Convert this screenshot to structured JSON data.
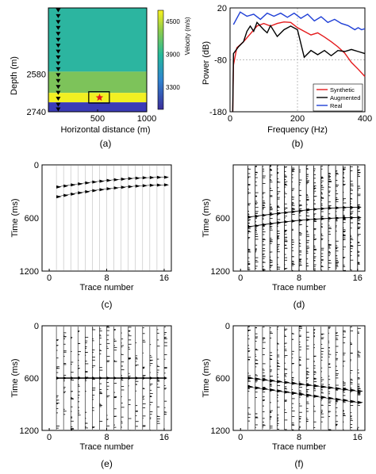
{
  "figure": {
    "panel_labels": [
      "(a)",
      "(b)",
      "(c)",
      "(d)",
      "(e)",
      "(f)"
    ]
  },
  "chart_data": [
    {
      "panel": "(a)",
      "type": "heatmap",
      "xlabel": "Horizontal distance (m)",
      "ylabel": "Depth (m)",
      "xticks": [
        "500",
        "1000"
      ],
      "yticks": [
        "2580",
        "2740"
      ],
      "xlim": [
        0,
        1000
      ],
      "ylim": [
        2300,
        2740
      ],
      "colorbar": {
        "label": "Velocity (m/s)",
        "ticks": [
          "4500",
          "3900",
          "3300"
        ],
        "range": [
          2900,
          4700
        ]
      },
      "layers": [
        {
          "top": 2300,
          "bottom": 2570,
          "velocity": 3900,
          "color": "#2cb5a0"
        },
        {
          "top": 2570,
          "bottom": 2660,
          "velocity": 4200,
          "color": "#7dc35a"
        },
        {
          "top": 2660,
          "bottom": 2700,
          "velocity": 4650,
          "color": "#f2f022"
        },
        {
          "top": 2700,
          "bottom": 2740,
          "velocity": 3000,
          "color": "#3b3bb7"
        }
      ],
      "receivers": {
        "x": 100,
        "depths": [
          2310,
          2335,
          2360,
          2385,
          2410,
          2435,
          2460,
          2485,
          2510,
          2535,
          2560,
          2585,
          2610,
          2635,
          2660,
          2685,
          2710,
          2730
        ]
      },
      "source": {
        "x": 520,
        "depth": 2680
      },
      "box": {
        "x0": 410,
        "x1": 620,
        "d0": 2655,
        "d1": 2703
      }
    },
    {
      "panel": "(b)",
      "type": "line",
      "xlabel": "Frequency (Hz)",
      "ylabel": "Power (dB)",
      "xlim": [
        0,
        400
      ],
      "ylim": [
        -180,
        20
      ],
      "xticks": [
        "0",
        "200",
        "400"
      ],
      "yticks": [
        "20",
        "-80",
        "-180"
      ],
      "grid": "dashed",
      "legend": "bottom-right",
      "series": [
        {
          "name": "Synthetic",
          "color": "#e41a1c",
          "x": [
            8,
            10,
            20,
            40,
            60,
            80,
            100,
            120,
            140,
            160,
            180,
            200,
            220,
            240,
            260,
            280,
            300,
            320,
            340,
            360,
            380,
            400
          ],
          "y": [
            -180,
            -90,
            -57,
            -45,
            -30,
            -15,
            -10,
            -15,
            -10,
            -7,
            -8,
            -18,
            -25,
            -32,
            -28,
            -36,
            -45,
            -55,
            -67,
            -85,
            -98,
            -112
          ]
        },
        {
          "name": "Augmented",
          "color": "#000000",
          "x": [
            8,
            10,
            25,
            40,
            50,
            60,
            70,
            80,
            100,
            110,
            120,
            140,
            160,
            180,
            200,
            220,
            240,
            260,
            280,
            300,
            320,
            340,
            360,
            380,
            400
          ],
          "y": [
            -180,
            -68,
            -55,
            -45,
            -25,
            -15,
            -25,
            -8,
            -22,
            -28,
            -14,
            -35,
            -22,
            -15,
            -22,
            -75,
            -62,
            -70,
            -62,
            -72,
            -62,
            -64,
            -60,
            -64,
            -68
          ]
        },
        {
          "name": "Real",
          "color": "#1f3fd6",
          "x": [
            10,
            30,
            50,
            70,
            90,
            110,
            130,
            150,
            170,
            190,
            210,
            230,
            250,
            270,
            290,
            310,
            330,
            350,
            370,
            380,
            390,
            400
          ],
          "y": [
            -12,
            12,
            4,
            8,
            -2,
            10,
            4,
            10,
            2,
            10,
            0,
            8,
            -5,
            3,
            -8,
            -2,
            -10,
            -14,
            -22,
            -18,
            -22,
            -20
          ]
        }
      ]
    },
    {
      "panel": "(c)",
      "type": "scatter",
      "xlabel": "Trace number",
      "ylabel": "Time (ms)",
      "xticks": [
        "0",
        "8",
        "16"
      ],
      "yticks": [
        "0",
        "600",
        "1200"
      ],
      "xlim": [
        -1,
        17
      ],
      "ylim": [
        1200,
        0
      ],
      "traces": [
        1,
        2,
        3,
        4,
        5,
        6,
        7,
        8,
        9,
        10,
        11,
        12,
        13,
        14,
        15,
        16
      ],
      "events": [
        {
          "name": "",
          "t": [
            250,
            238,
            226,
            215,
            204,
            194,
            185,
            176,
            168,
            161,
            155,
            150,
            146,
            143,
            141,
            140
          ]
        },
        {
          "name": "",
          "t": [
            360,
            345,
            330,
            316,
            303,
            291,
            280,
            270,
            261,
            253,
            246,
            240,
            235,
            231,
            228,
            226
          ]
        }
      ]
    },
    {
      "panel": "(d)",
      "type": "scatter",
      "xlabel": "Trace number",
      "ylabel": "Time (ms)",
      "xticks": [
        "0",
        "8",
        "16"
      ],
      "yticks": [
        "600",
        "1200"
      ],
      "xlim": [
        -1,
        17
      ],
      "ylim": [
        1200,
        0
      ],
      "traces": [
        1,
        2,
        3,
        4,
        5,
        6,
        7,
        8,
        9,
        10,
        11,
        12,
        13,
        14,
        15,
        16
      ],
      "events": [
        {
          "name": "",
          "t": [
            590,
            580,
            570,
            560,
            550,
            540,
            530,
            520,
            510,
            502,
            495,
            490,
            486,
            482,
            480,
            478
          ]
        },
        {
          "name": "",
          "t": [
            700,
            688,
            676,
            665,
            654,
            644,
            635,
            627,
            620,
            614,
            609,
            605,
            601,
            598,
            596,
            594
          ]
        }
      ]
    },
    {
      "panel": "(e)",
      "type": "scatter",
      "xlabel": "Trace number",
      "ylabel": "Time (ms)",
      "xticks": [
        "0",
        "8",
        "16"
      ],
      "yticks": [
        "0",
        "600",
        "1200"
      ],
      "xlim": [
        -1,
        17
      ],
      "ylim": [
        1200,
        0
      ],
      "traces": [
        1,
        2,
        3,
        4,
        5,
        6,
        7,
        8,
        9,
        10,
        11,
        12,
        13,
        14,
        15,
        16
      ],
      "events": [
        {
          "name": "",
          "t": [
            600,
            600,
            600,
            600,
            600,
            600,
            600,
            600,
            600,
            600,
            600,
            600,
            600,
            600,
            600,
            600
          ]
        }
      ]
    },
    {
      "panel": "(f)",
      "type": "scatter",
      "xlabel": "Trace number",
      "ylabel": "Time (ms)",
      "xticks": [
        "0",
        "8",
        "16"
      ],
      "yticks": [
        "0",
        "600",
        "1200"
      ],
      "xlim": [
        -1,
        17
      ],
      "ylim": [
        1200,
        0
      ],
      "traces": [
        1,
        2,
        3,
        4,
        5,
        6,
        7,
        8,
        9,
        10,
        11,
        12,
        13,
        14,
        15,
        16
      ],
      "events": [
        {
          "name": "",
          "t": [
            600,
            610,
            620,
            630,
            640,
            650,
            660,
            670,
            680,
            690,
            700,
            710,
            720,
            730,
            740,
            750
          ]
        },
        {
          "name": "",
          "t": [
            700,
            712,
            724,
            736,
            748,
            760,
            772,
            784,
            796,
            808,
            820,
            832,
            844,
            856,
            868,
            880
          ]
        }
      ]
    }
  ]
}
